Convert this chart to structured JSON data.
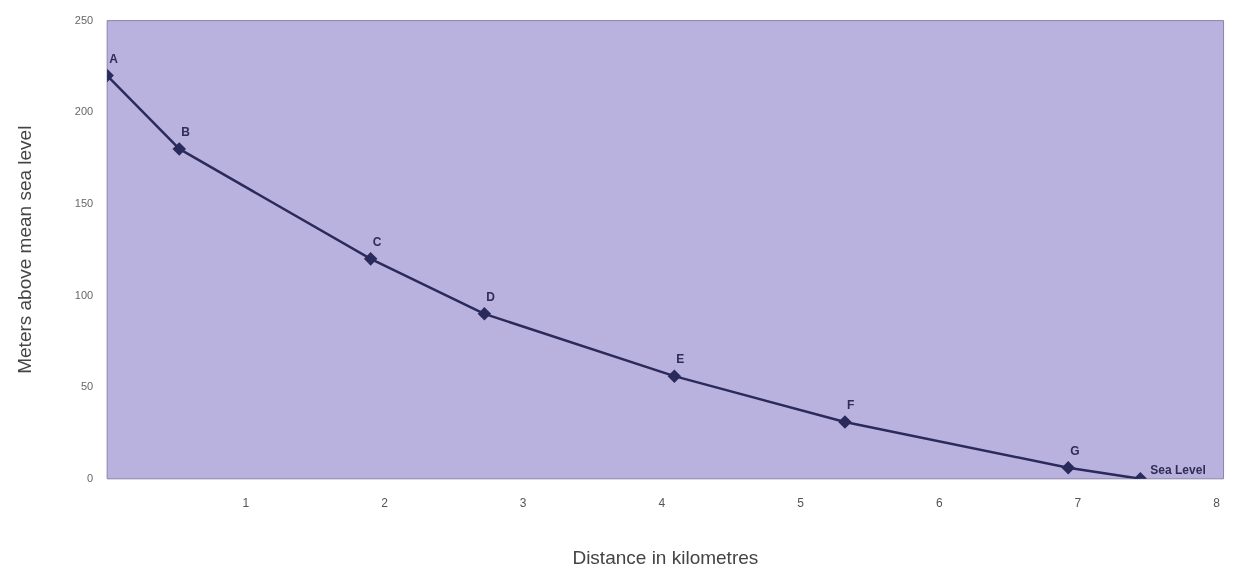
{
  "chart_data": {
    "type": "line",
    "xlabel": "Distance in kilometres",
    "ylabel": "Meters above mean sea level",
    "x": [
      0,
      0.52,
      1.9,
      2.72,
      4.09,
      5.32,
      6.93,
      7.45
    ],
    "values": [
      220,
      180,
      120,
      90,
      56,
      31,
      6,
      0
    ],
    "color": "#2b2a5c",
    "marker": "diamond",
    "grid": false,
    "xlim": [
      0,
      8.05
    ],
    "xticks": [
      1,
      2,
      3,
      4,
      5,
      6,
      7,
      8
    ],
    "ylim": [
      0,
      250
    ],
    "yticks": [
      0,
      50,
      100,
      150,
      200,
      250
    ],
    "annotations": [
      {
        "text": "A",
        "x": 0,
        "y": 220
      },
      {
        "text": "B",
        "x": 0.52,
        "y": 180
      },
      {
        "text": "C",
        "x": 1.9,
        "y": 120
      },
      {
        "text": "D",
        "x": 2.72,
        "y": 90
      },
      {
        "text": "E",
        "x": 4.09,
        "y": 56
      },
      {
        "text": "F",
        "x": 5.32,
        "y": 31
      },
      {
        "text": "G",
        "x": 6.93,
        "y": 6
      },
      {
        "text": "Sea Level",
        "x": 7.45,
        "y": 0
      }
    ]
  }
}
